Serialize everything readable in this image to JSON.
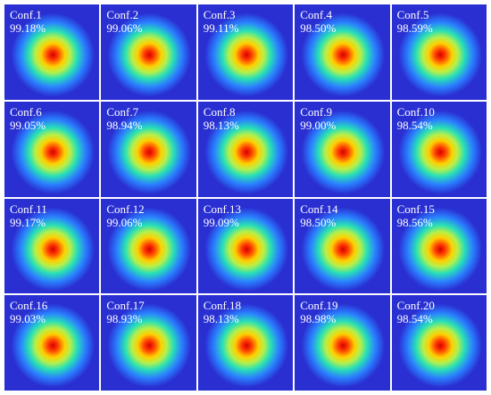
{
  "panels": [
    {
      "conf": "Conf.1",
      "value": "99.18%"
    },
    {
      "conf": "Conf.2",
      "value": "99.06%"
    },
    {
      "conf": "Conf.3",
      "value": "99.11%"
    },
    {
      "conf": "Conf.4",
      "value": "98.50%"
    },
    {
      "conf": "Conf.5",
      "value": "98.59%"
    },
    {
      "conf": "Conf.6",
      "value": "99.05%"
    },
    {
      "conf": "Conf.7",
      "value": "98.94%"
    },
    {
      "conf": "Conf.8",
      "value": "98.13%"
    },
    {
      "conf": "Conf.9",
      "value": "99.00%"
    },
    {
      "conf": "Conf.10",
      "value": "98.54%"
    },
    {
      "conf": "Conf.11",
      "value": "99.17%"
    },
    {
      "conf": "Conf.12",
      "value": "99.06%"
    },
    {
      "conf": "Conf.13",
      "value": "99.09%"
    },
    {
      "conf": "Conf.14",
      "value": "98.50%"
    },
    {
      "conf": "Conf.15",
      "value": "98.56%"
    },
    {
      "conf": "Conf.16",
      "value": "99.03%"
    },
    {
      "conf": "Conf.17",
      "value": "98.93%"
    },
    {
      "conf": "Conf.18",
      "value": "98.13%"
    },
    {
      "conf": "Conf.19",
      "value": "98.98%"
    },
    {
      "conf": "Conf.20",
      "value": "98.54%"
    }
  ],
  "colors": {
    "background": "#2a2fd2",
    "ramp": [
      "#d40000",
      "#ff3b00",
      "#ffd000",
      "#b6f04a",
      "#28e0b6",
      "#2a7fff",
      "#2a2fd2"
    ]
  }
}
